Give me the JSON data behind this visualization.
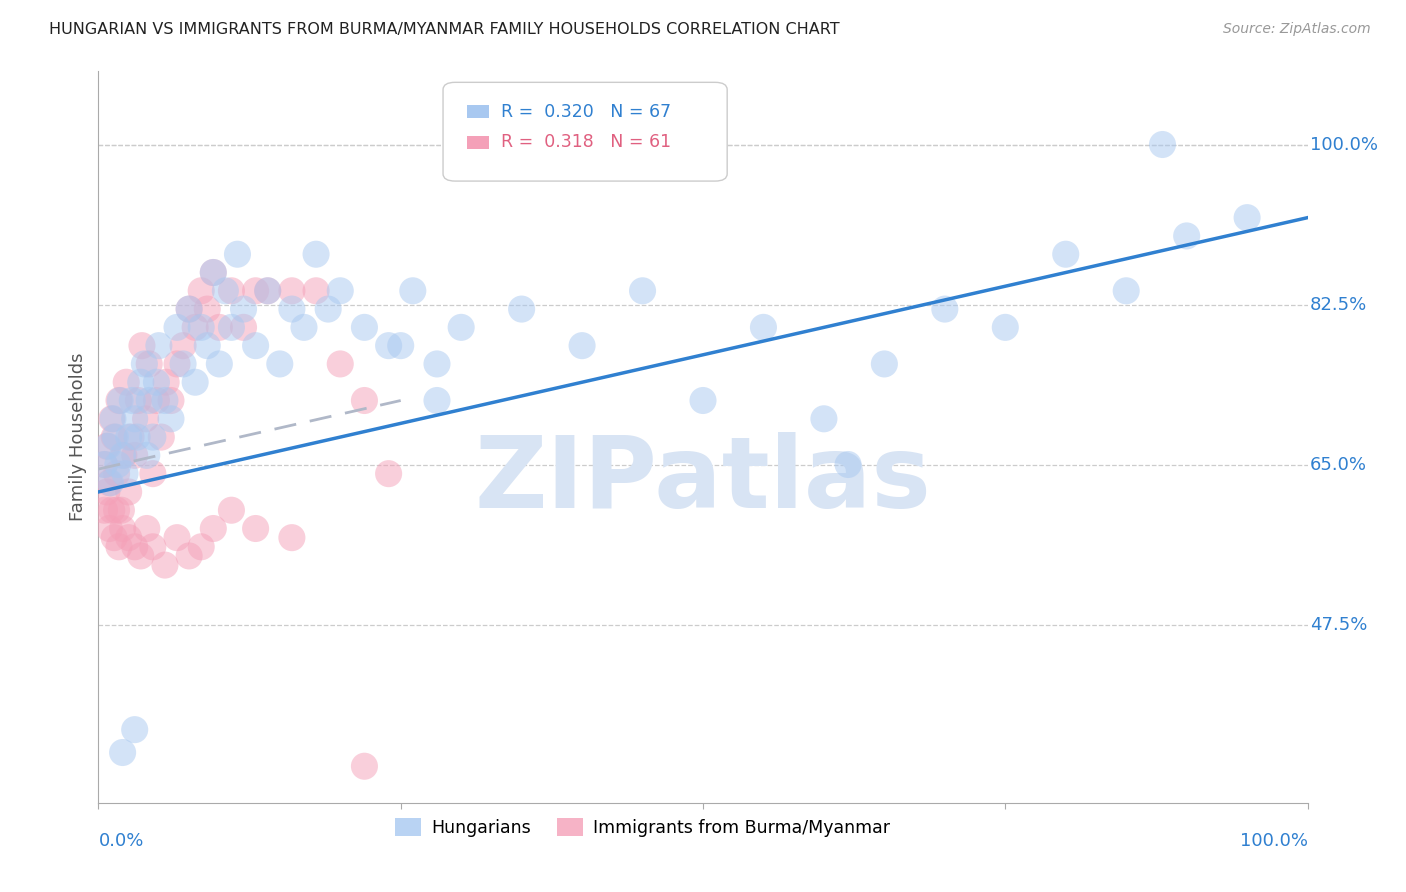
{
  "title": "HUNGARIAN VS IMMIGRANTS FROM BURMA/MYANMAR FAMILY HOUSEHOLDS CORRELATION CHART",
  "source": "Source: ZipAtlas.com",
  "ylabel": "Family Households",
  "yticks": [
    0.475,
    0.65,
    0.825,
    1.0
  ],
  "ytick_labels": [
    "47.5%",
    "65.0%",
    "82.5%",
    "100.0%"
  ],
  "xrange": [
    0.0,
    1.0
  ],
  "yrange": [
    0.28,
    1.08
  ],
  "legend_blue_R": "0.320",
  "legend_blue_N": "67",
  "legend_pink_R": "0.318",
  "legend_pink_N": "61",
  "blue_color": "#a8c8f0",
  "pink_color": "#f4a0b8",
  "blue_line_color": "#3080d0",
  "pink_line_color": "#b0b8c8",
  "watermark_color": "#d8e4f4",
  "blue_scatter_x": [
    0.005,
    0.008,
    0.01,
    0.012,
    0.014,
    0.016,
    0.018,
    0.02,
    0.022,
    0.025,
    0.028,
    0.03,
    0.032,
    0.035,
    0.038,
    0.04,
    0.042,
    0.045,
    0.048,
    0.05,
    0.055,
    0.06,
    0.065,
    0.07,
    0.075,
    0.08,
    0.085,
    0.09,
    0.095,
    0.1,
    0.105,
    0.11,
    0.115,
    0.12,
    0.13,
    0.14,
    0.15,
    0.16,
    0.17,
    0.18,
    0.19,
    0.2,
    0.22,
    0.24,
    0.26,
    0.28,
    0.3,
    0.35,
    0.4,
    0.45,
    0.5,
    0.55,
    0.6,
    0.65,
    0.7,
    0.75,
    0.8,
    0.85,
    0.9,
    0.95,
    0.02,
    0.03,
    0.25,
    0.28,
    0.32,
    0.62,
    0.88
  ],
  "blue_scatter_y": [
    0.65,
    0.67,
    0.63,
    0.7,
    0.68,
    0.65,
    0.72,
    0.66,
    0.64,
    0.68,
    0.72,
    0.7,
    0.68,
    0.74,
    0.76,
    0.66,
    0.72,
    0.68,
    0.74,
    0.78,
    0.72,
    0.7,
    0.8,
    0.76,
    0.82,
    0.74,
    0.8,
    0.78,
    0.86,
    0.76,
    0.84,
    0.8,
    0.88,
    0.82,
    0.78,
    0.84,
    0.76,
    0.82,
    0.8,
    0.88,
    0.82,
    0.84,
    0.8,
    0.78,
    0.84,
    0.76,
    0.8,
    0.82,
    0.78,
    0.84,
    0.72,
    0.8,
    0.7,
    0.76,
    0.82,
    0.8,
    0.88,
    0.84,
    0.9,
    0.92,
    0.335,
    0.36,
    0.78,
    0.72,
    1.0,
    0.65,
    1.0
  ],
  "pink_scatter_x": [
    0.005,
    0.007,
    0.009,
    0.011,
    0.013,
    0.015,
    0.017,
    0.019,
    0.021,
    0.023,
    0.025,
    0.027,
    0.03,
    0.033,
    0.036,
    0.039,
    0.042,
    0.045,
    0.048,
    0.052,
    0.056,
    0.06,
    0.065,
    0.07,
    0.075,
    0.08,
    0.085,
    0.09,
    0.095,
    0.1,
    0.11,
    0.12,
    0.13,
    0.14,
    0.16,
    0.18,
    0.2,
    0.22,
    0.24,
    0.005,
    0.007,
    0.009,
    0.011,
    0.013,
    0.015,
    0.017,
    0.02,
    0.025,
    0.03,
    0.035,
    0.04,
    0.045,
    0.055,
    0.065,
    0.075,
    0.085,
    0.095,
    0.11,
    0.13,
    0.16,
    0.22
  ],
  "pink_scatter_y": [
    0.65,
    0.67,
    0.63,
    0.7,
    0.68,
    0.64,
    0.72,
    0.6,
    0.66,
    0.74,
    0.62,
    0.68,
    0.66,
    0.72,
    0.78,
    0.7,
    0.76,
    0.64,
    0.72,
    0.68,
    0.74,
    0.72,
    0.76,
    0.78,
    0.82,
    0.8,
    0.84,
    0.82,
    0.86,
    0.8,
    0.84,
    0.8,
    0.84,
    0.84,
    0.84,
    0.84,
    0.76,
    0.72,
    0.64,
    0.6,
    0.62,
    0.58,
    0.6,
    0.57,
    0.6,
    0.56,
    0.58,
    0.57,
    0.56,
    0.55,
    0.58,
    0.56,
    0.54,
    0.57,
    0.55,
    0.56,
    0.58,
    0.6,
    0.58,
    0.57,
    0.32
  ],
  "blue_line_x": [
    0.0,
    1.0
  ],
  "blue_line_y": [
    0.62,
    0.92
  ],
  "pink_line_x": [
    0.0,
    0.25
  ],
  "pink_line_y": [
    0.645,
    0.72
  ]
}
